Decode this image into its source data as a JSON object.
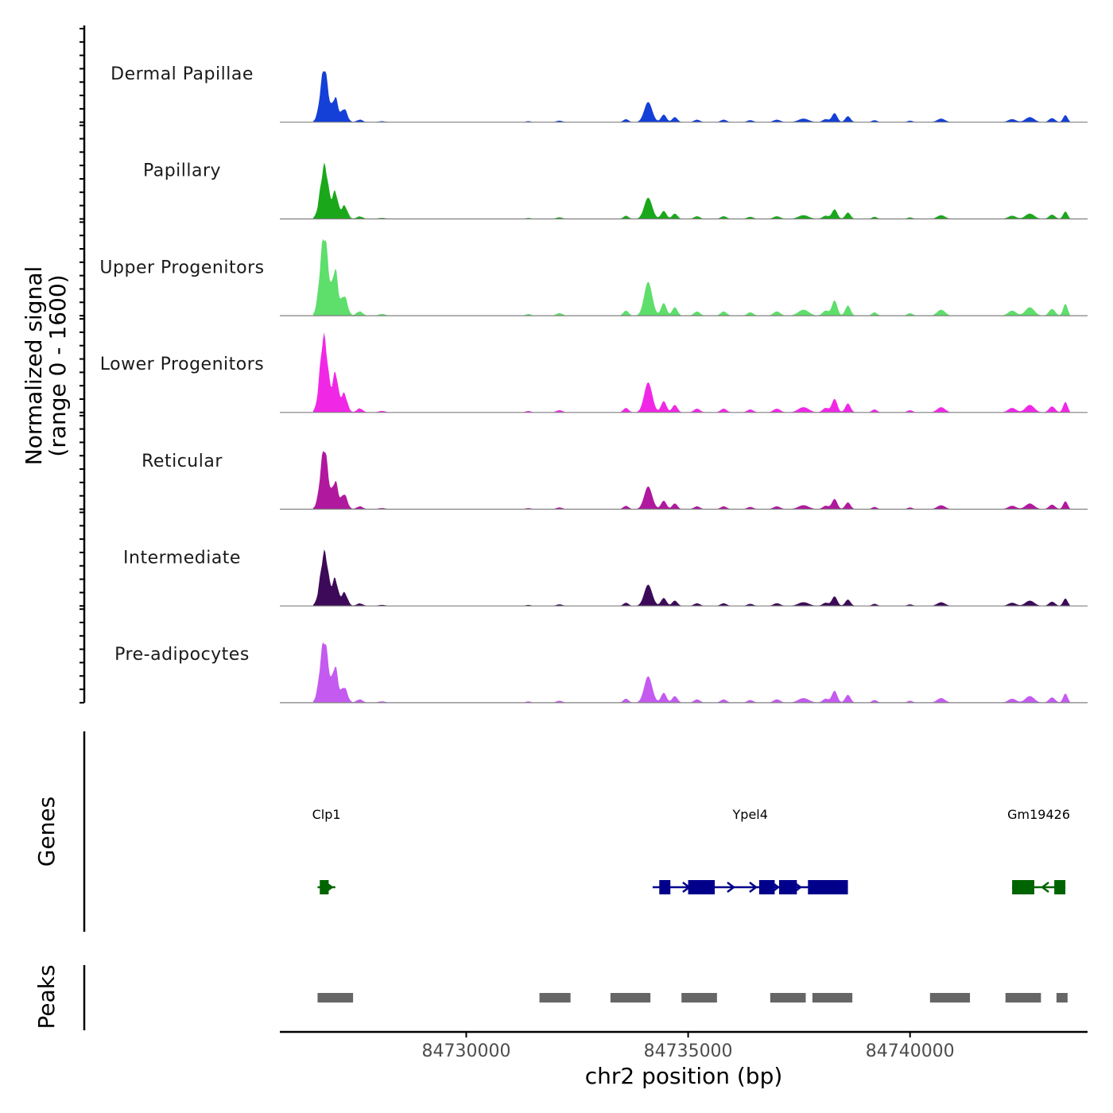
{
  "chart_data": {
    "type": "area",
    "title": "",
    "chromosome": "chr2",
    "xlabel": "chr2 position (bp)",
    "ylabel_line1": "Normalized signal",
    "ylabel_line2": "(range 0 - 1600)",
    "y_range": [
      0,
      1600
    ],
    "xlim": [
      84725800,
      84744000
    ],
    "x_ticks": [
      84730000,
      84735000,
      84740000
    ],
    "x_tick_labels": [
      "84730000",
      "84735000",
      "84740000"
    ],
    "series": [
      {
        "name": "Dermal Papillae",
        "color": "#1440d8"
      },
      {
        "name": "Papillary",
        "color": "#1aa81a"
      },
      {
        "name": "Upper Progenitors",
        "color": "#5ede6a"
      },
      {
        "name": "Lower Progenitors",
        "color": "#f028e6"
      },
      {
        "name": "Reticular",
        "color": "#b0189e"
      },
      {
        "name": "Intermediate",
        "color": "#3c0a58"
      },
      {
        "name": "Pre-adipocytes",
        "color": "#c45af0"
      }
    ],
    "genes_track_label": "Genes",
    "peaks_track_label": "Peaks",
    "genes": [
      {
        "name": "Clp1",
        "start": 84726650,
        "end": 84727050,
        "strand": "+",
        "color": "#006400",
        "exons": [
          [
            84726700,
            84726900
          ]
        ]
      },
      {
        "name": "Ypel4",
        "start": 84734200,
        "end": 84738600,
        "strand": "+",
        "color": "#00008b",
        "exons": [
          [
            84734350,
            84734600
          ],
          [
            84735000,
            84735600
          ],
          [
            84736600,
            84736950
          ],
          [
            84737050,
            84737450
          ],
          [
            84737700,
            84738600
          ]
        ]
      },
      {
        "name": "Gm19426",
        "start": 84742300,
        "end": 84743500,
        "strand": "-",
        "color": "#006400",
        "exons": [
          [
            84742300,
            84742800
          ],
          [
            84743250,
            84743500
          ]
        ]
      }
    ],
    "peaks": [
      [
        84726650,
        84727450
      ],
      [
        84731650,
        84732350
      ],
      [
        84733250,
        84734150
      ],
      [
        84734850,
        84735650
      ],
      [
        84736850,
        84737650
      ],
      [
        84737800,
        84738700
      ],
      [
        84740450,
        84741350
      ],
      [
        84742150,
        84742950
      ],
      [
        84743300,
        84743550
      ]
    ]
  }
}
